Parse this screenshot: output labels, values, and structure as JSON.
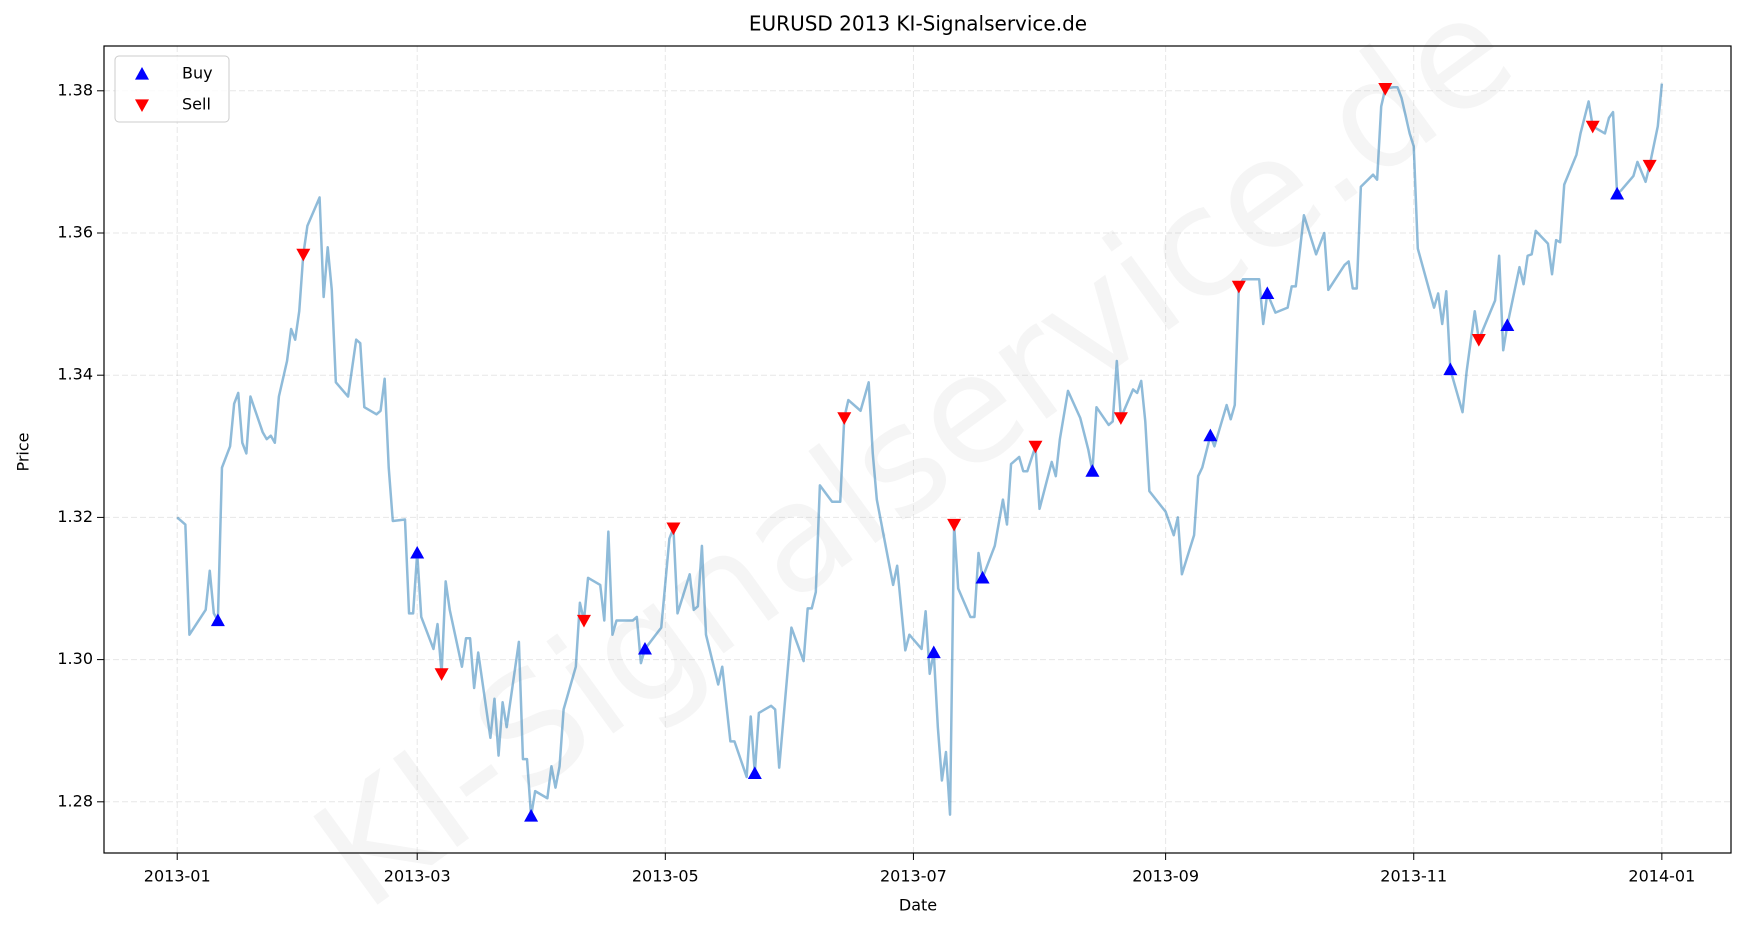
{
  "chart_data": {
    "type": "line",
    "title": "EURUSD 2013 KI-Signalservice.de",
    "xlabel": "Date",
    "ylabel": "Price",
    "watermark": "KI-Signalservice.de",
    "color": "#1f77b4",
    "opacity": 0.5,
    "grid": true,
    "legend": "upper left",
    "xlim": [
      "2012-12-14",
      "2014-01-18"
    ],
    "xticks": [
      {
        "value": "2013-01-01",
        "label": "2013-01"
      },
      {
        "value": "2013-03-01",
        "label": "2013-03"
      },
      {
        "value": "2013-05-01",
        "label": "2013-05"
      },
      {
        "value": "2013-07-01",
        "label": "2013-07"
      },
      {
        "value": "2013-09-01",
        "label": "2013-09"
      },
      {
        "value": "2013-11-01",
        "label": "2013-11"
      },
      {
        "value": "2014-01-01",
        "label": "2014-01"
      }
    ],
    "ylim": [
      1.2728,
      1.3863
    ],
    "yticks": [
      1.28,
      {
        "value": 1.3,
        "label": "1.30"
      },
      1.32,
      1.34,
      1.36,
      1.38
    ],
    "x": [
      "2013-01-01",
      "2013-01-03",
      "2013-01-04",
      "2013-01-08",
      "2013-01-09",
      "2013-01-10",
      "2013-01-11",
      "2013-01-12",
      "2013-01-14",
      "2013-01-15",
      "2013-01-16",
      "2013-01-17",
      "2013-01-18",
      "2013-01-19",
      "2013-01-22",
      "2013-01-23",
      "2013-01-24",
      "2013-01-25",
      "2013-01-26",
      "2013-01-28",
      "2013-01-29",
      "2013-01-30",
      "2013-01-31",
      "2013-02-01",
      "2013-02-02",
      "2013-02-05",
      "2013-02-06",
      "2013-02-07",
      "2013-02-08",
      "2013-02-09",
      "2013-02-12",
      "2013-02-14",
      "2013-02-15",
      "2013-02-16",
      "2013-02-19",
      "2013-02-20",
      "2013-02-21",
      "2013-02-22",
      "2013-02-23",
      "2013-02-26",
      "2013-02-27",
      "2013-02-28",
      "2013-03-01",
      "2013-03-02",
      "2013-03-05",
      "2013-03-06",
      "2013-03-07",
      "2013-03-08",
      "2013-03-09",
      "2013-03-12",
      "2013-03-13",
      "2013-03-14",
      "2013-03-15",
      "2013-03-16",
      "2013-03-19",
      "2013-03-20",
      "2013-03-21",
      "2013-03-22",
      "2013-03-23",
      "2013-03-26",
      "2013-03-27",
      "2013-03-28",
      "2013-03-29",
      "2013-03-30",
      "2013-04-02",
      "2013-04-03",
      "2013-04-04",
      "2013-04-05",
      "2013-04-06",
      "2013-04-09",
      "2013-04-10",
      "2013-04-11",
      "2013-04-12",
      "2013-04-15",
      "2013-04-16",
      "2013-04-17",
      "2013-04-18",
      "2013-04-19",
      "2013-04-23",
      "2013-04-24",
      "2013-04-25",
      "2013-04-26",
      "2013-04-30",
      "2013-05-02",
      "2013-05-03",
      "2013-05-04",
      "2013-05-07",
      "2013-05-08",
      "2013-05-09",
      "2013-05-10",
      "2013-05-11",
      "2013-05-14",
      "2013-05-15",
      "2013-05-17",
      "2013-05-18",
      "2013-05-21",
      "2013-05-22",
      "2013-05-23",
      "2013-05-24",
      "2013-05-27",
      "2013-05-28",
      "2013-05-29",
      "2013-06-01",
      "2013-06-04",
      "2013-06-05",
      "2013-06-06",
      "2013-06-07",
      "2013-06-08",
      "2013-06-11",
      "2013-06-13",
      "2013-06-14",
      "2013-06-15",
      "2013-06-18",
      "2013-06-20",
      "2013-06-21",
      "2013-06-22",
      "2013-06-26",
      "2013-06-27",
      "2013-06-29",
      "2013-06-30",
      "2013-07-03",
      "2013-07-04",
      "2013-07-05",
      "2013-07-06",
      "2013-07-07",
      "2013-07-08",
      "2013-07-09",
      "2013-07-10",
      "2013-07-11",
      "2013-07-12",
      "2013-07-15",
      "2013-07-16",
      "2013-07-17",
      "2013-07-18",
      "2013-07-21",
      "2013-07-23",
      "2013-07-24",
      "2013-07-25",
      "2013-07-27",
      "2013-07-28",
      "2013-07-29",
      "2013-07-31",
      "2013-08-01",
      "2013-08-04",
      "2013-08-05",
      "2013-08-06",
      "2013-08-08",
      "2013-08-11",
      "2013-08-13",
      "2013-08-14",
      "2013-08-15",
      "2013-08-18",
      "2013-08-19",
      "2013-08-20",
      "2013-08-21",
      "2013-08-24",
      "2013-08-25",
      "2013-08-26",
      "2013-08-27",
      "2013-08-28",
      "2013-09-01",
      "2013-09-03",
      "2013-09-04",
      "2013-09-05",
      "2013-09-08",
      "2013-09-09",
      "2013-09-10",
      "2013-09-12",
      "2013-09-13",
      "2013-09-16",
      "2013-09-17",
      "2013-09-18",
      "2013-09-19",
      "2013-09-20",
      "2013-09-24",
      "2013-09-25",
      "2013-09-26",
      "2013-09-28",
      "2013-10-01",
      "2013-10-02",
      "2013-10-03",
      "2013-10-05",
      "2013-10-08",
      "2013-10-10",
      "2013-10-11",
      "2013-10-15",
      "2013-10-16",
      "2013-10-17",
      "2013-10-18",
      "2013-10-19",
      "2013-10-22",
      "2013-10-23",
      "2013-10-24",
      "2013-10-25",
      "2013-10-27",
      "2013-10-28",
      "2013-10-29",
      "2013-10-31",
      "2013-11-01",
      "2013-11-02",
      "2013-11-06",
      "2013-11-07",
      "2013-11-08",
      "2013-11-09",
      "2013-11-10",
      "2013-11-13",
      "2013-11-14",
      "2013-11-16",
      "2013-11-17",
      "2013-11-21",
      "2013-11-22",
      "2013-11-23",
      "2013-11-24",
      "2013-11-27",
      "2013-11-28",
      "2013-11-29",
      "2013-11-30",
      "2013-12-01",
      "2013-12-04",
      "2013-12-05",
      "2013-12-06",
      "2013-12-07",
      "2013-12-08",
      "2013-12-11",
      "2013-12-12",
      "2013-12-14",
      "2013-12-15",
      "2013-12-18",
      "2013-12-19",
      "2013-12-20",
      "2013-12-21",
      "2013-12-22",
      "2013-12-25",
      "2013-12-26",
      "2013-12-28",
      "2013-12-29",
      "2013-12-31",
      "2014-01-01"
    ],
    "values": [
      1.32,
      1.319,
      1.3035,
      1.307,
      1.3125,
      1.3065,
      1.3055,
      1.327,
      1.33,
      1.336,
      1.3375,
      1.3305,
      1.329,
      1.337,
      1.332,
      1.331,
      1.3315,
      1.3305,
      1.337,
      1.342,
      1.3465,
      1.345,
      1.349,
      1.357,
      1.361,
      1.365,
      1.351,
      1.358,
      1.352,
      1.339,
      1.337,
      1.345,
      1.3445,
      1.3355,
      1.3345,
      1.335,
      1.3395,
      1.327,
      1.3195,
      1.3197,
      1.3065,
      1.3065,
      1.315,
      1.306,
      1.3015,
      1.305,
      1.298,
      1.311,
      1.307,
      1.299,
      1.303,
      1.303,
      1.296,
      1.301,
      1.289,
      1.2945,
      1.2865,
      1.294,
      1.2905,
      1.3025,
      1.286,
      1.286,
      1.278,
      1.2815,
      1.2805,
      1.285,
      1.282,
      1.285,
      1.293,
      1.299,
      1.308,
      1.3055,
      1.3115,
      1.3105,
      1.3055,
      1.318,
      1.3035,
      1.3055,
      1.3055,
      1.306,
      1.2995,
      1.3015,
      1.3045,
      1.317,
      1.3185,
      1.3065,
      1.312,
      1.307,
      1.3075,
      1.316,
      1.3035,
      1.2965,
      1.299,
      1.2885,
      1.2885,
      1.2835,
      1.292,
      1.284,
      1.2925,
      1.2935,
      1.293,
      1.2848,
      1.3045,
      1.2998,
      1.3072,
      1.3072,
      1.3095,
      1.3245,
      1.3222,
      1.3222,
      1.334,
      1.3365,
      1.335,
      1.339,
      1.329,
      1.3225,
      1.3105,
      1.3132,
      1.3013,
      1.3035,
      1.3015,
      1.3068,
      1.298,
      1.301,
      1.2905,
      1.283,
      1.287,
      1.2782,
      1.319,
      1.31,
      1.306,
      1.306,
      1.315,
      1.3115,
      1.316,
      1.3225,
      1.319,
      1.3275,
      1.3285,
      1.3265,
      1.3265,
      1.33,
      1.3212,
      1.3278,
      1.3258,
      1.331,
      1.3378,
      1.334,
      1.3295,
      1.3265,
      1.3355,
      1.333,
      1.3335,
      1.342,
      1.334,
      1.338,
      1.3375,
      1.3392,
      1.3335,
      1.3237,
      1.3208,
      1.3175,
      1.32,
      1.312,
      1.3175,
      1.3258,
      1.327,
      1.3315,
      1.33,
      1.3358,
      1.3338,
      1.3358,
      1.3525,
      1.3535,
      1.3535,
      1.3472,
      1.3515,
      1.3488,
      1.3495,
      1.3525,
      1.3525,
      1.3625,
      1.357,
      1.36,
      1.352,
      1.3555,
      1.356,
      1.3522,
      1.3522,
      1.3665,
      1.3682,
      1.3675,
      1.3778,
      1.3803,
      1.3805,
      1.3805,
      1.379,
      1.374,
      1.3722,
      1.3578,
      1.3495,
      1.3515,
      1.3472,
      1.3518,
      1.3408,
      1.3348,
      1.3405,
      1.349,
      1.345,
      1.3505,
      1.3568,
      1.3435,
      1.347,
      1.3552,
      1.3528,
      1.3568,
      1.357,
      1.3603,
      1.3585,
      1.3542,
      1.359,
      1.3587,
      1.3668,
      1.371,
      1.374,
      1.3785,
      1.375,
      1.374,
      1.3762,
      1.377,
      1.3655,
      1.366,
      1.368,
      1.37,
      1.3672,
      1.3695,
      1.375,
      1.381
    ],
    "markers": [
      {
        "name": "Buy",
        "color": "#0000ff",
        "symbol": "triangle-up",
        "x": [
          "2013-01-11",
          "2013-03-01",
          "2013-03-29",
          "2013-04-26",
          "2013-05-23",
          "2013-07-06",
          "2013-07-18",
          "2013-08-14",
          "2013-09-12",
          "2013-09-26",
          "2013-11-10",
          "2013-11-24",
          "2013-12-21"
        ],
        "values": [
          1.3055,
          1.315,
          1.278,
          1.3015,
          1.284,
          1.301,
          1.3115,
          1.3265,
          1.3315,
          1.3515,
          1.3408,
          1.347,
          1.3655
        ]
      },
      {
        "name": "Sell",
        "color": "#ff0000",
        "symbol": "triangle-down",
        "x": [
          "2013-02-01",
          "2013-03-07",
          "2013-04-11",
          "2013-05-03",
          "2013-06-14",
          "2013-07-11",
          "2013-07-31",
          "2013-08-21",
          "2013-09-19",
          "2013-10-25",
          "2013-11-17",
          "2013-12-15",
          "2013-12-29"
        ],
        "values": [
          1.357,
          1.298,
          1.3055,
          1.3185,
          1.334,
          1.319,
          1.33,
          1.334,
          1.3525,
          1.3803,
          1.345,
          1.375,
          1.3695
        ]
      }
    ]
  }
}
